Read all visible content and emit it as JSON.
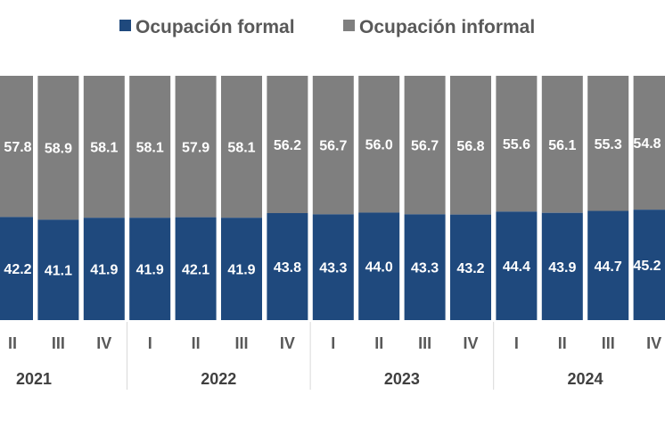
{
  "chart_data": {
    "type": "bar",
    "stacked": true,
    "normalized_percent": true,
    "categories": [
      "II",
      "III",
      "IV",
      "I",
      "II",
      "III",
      "IV",
      "I",
      "II",
      "III",
      "IV",
      "I",
      "II",
      "III",
      "IV"
    ],
    "years": [
      "2021",
      "2022",
      "2023",
      "2024"
    ],
    "year_groups": [
      {
        "year": "2021",
        "count": 3
      },
      {
        "year": "2022",
        "count": 4
      },
      {
        "year": "2023",
        "count": 4
      },
      {
        "year": "2024",
        "count": 4
      }
    ],
    "series": [
      {
        "name": "Ocupación formal",
        "color": "#1f497d",
        "values": [
          42.2,
          41.1,
          41.9,
          41.9,
          42.1,
          41.9,
          43.8,
          43.3,
          44.0,
          43.3,
          43.2,
          44.4,
          43.9,
          44.7,
          45.2
        ],
        "labels": [
          "42.2",
          "41.1",
          "41.9",
          "41.9",
          "42.1",
          "41.9",
          "43.8",
          "43.3",
          "44.0",
          "43.3",
          "43.2",
          "44.4",
          "43.9",
          "44.7",
          "45.2"
        ]
      },
      {
        "name": "Ocupación informal",
        "color": "#7f7f7f",
        "values": [
          57.8,
          58.9,
          58.1,
          58.1,
          57.9,
          58.1,
          56.2,
          56.7,
          56.0,
          56.7,
          56.8,
          55.6,
          56.1,
          55.3,
          54.8
        ],
        "labels": [
          "57.8",
          "58.9",
          "58.1",
          "58.1",
          "57.9",
          "58.1",
          "56.2",
          "56.7",
          "56.0",
          "56.7",
          "56.8",
          "55.6",
          "56.1",
          "55.3",
          "54.8"
        ]
      }
    ],
    "ylim": [
      0,
      100
    ],
    "legend_position": "top"
  }
}
